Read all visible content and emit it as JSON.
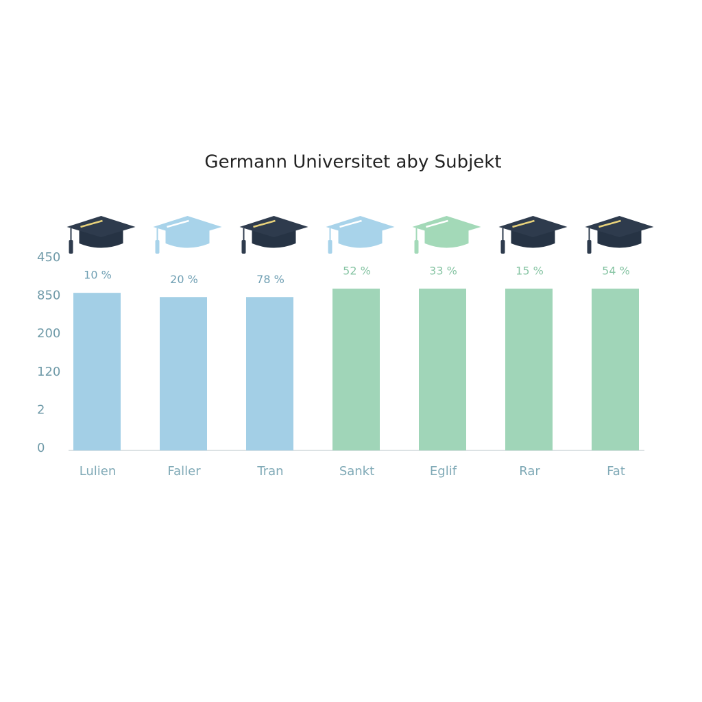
{
  "chart_data": {
    "type": "bar",
    "title": "Germann Universitet aby Subjekt",
    "categories": [
      "Lulien",
      "Faller",
      "Tran",
      "Sankt",
      "Eglif",
      "Rar",
      "Fat"
    ],
    "values": [
      4.08,
      3.97,
      3.97,
      4.19,
      4.19,
      4.19,
      4.19
    ],
    "bar_labels": [
      "10 %",
      "20 %",
      "78 %",
      "52 %",
      "33 %",
      "15 %",
      "54 %"
    ],
    "colors": [
      "#a3cfe6",
      "#a3cfe6",
      "#a3cfe6",
      "#a0d5b8",
      "#a0d5b8",
      "#a0d5b8",
      "#a0d5b8"
    ],
    "ylim": [
      0,
      5
    ],
    "yticks": [
      {
        "value": 0,
        "label": "0"
      },
      {
        "value": 1,
        "label": "2"
      },
      {
        "value": 2,
        "label": "120"
      },
      {
        "value": 3,
        "label": "200"
      },
      {
        "value": 4,
        "label": "850"
      },
      {
        "value": 5,
        "label": "450"
      }
    ],
    "grid": false
  }
}
